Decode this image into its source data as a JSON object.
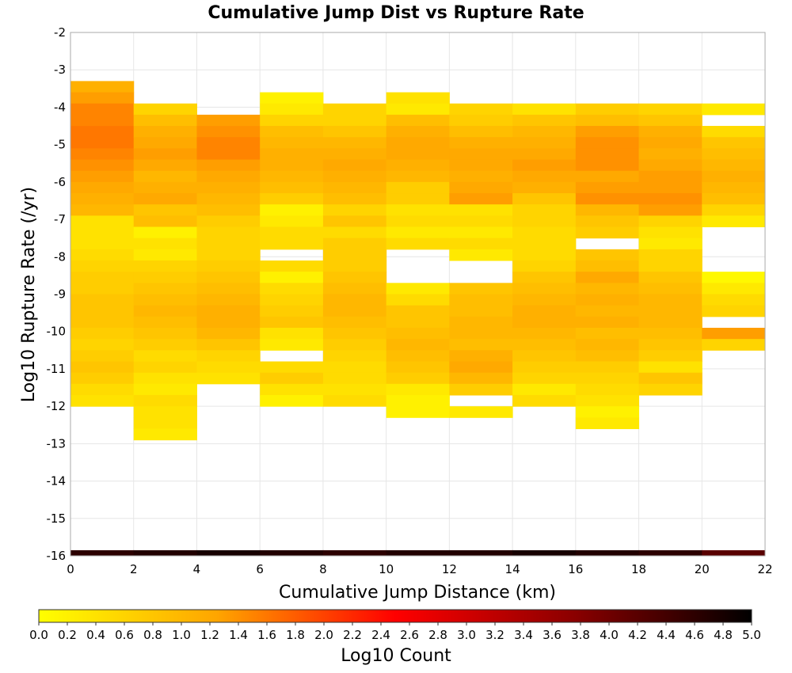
{
  "chart_data": {
    "type": "heatmap",
    "title": "Cumulative Jump Dist vs Rupture Rate",
    "xlabel": "Cumulative Jump Distance (km)",
    "ylabel": "Log10 Rupture Rate (/yr)",
    "xlim": [
      0,
      22
    ],
    "ylim": [
      -16,
      -2
    ],
    "x_ticks": [
      "0",
      "2",
      "4",
      "6",
      "8",
      "10",
      "12",
      "14",
      "16",
      "18",
      "20",
      "22"
    ],
    "y_ticks": [
      "-2",
      "-3",
      "-4",
      "-5",
      "-6",
      "-7",
      "-8",
      "-9",
      "-10",
      "-11",
      "-12",
      "-13",
      "-14",
      "-15",
      "-16"
    ],
    "x_bin_width": 2,
    "y_bin_width": 0.3,
    "grid": true,
    "colorbar": {
      "label": "Log10 Count",
      "range": [
        0,
        5
      ],
      "ticks": [
        "0.0",
        "0.2",
        "0.4",
        "0.6",
        "0.8",
        "1.0",
        "1.2",
        "1.4",
        "1.6",
        "1.8",
        "2.0",
        "2.2",
        "2.4",
        "2.6",
        "2.8",
        "3.0",
        "3.2",
        "3.4",
        "3.6",
        "3.8",
        "4.0",
        "4.2",
        "4.4",
        "4.6",
        "4.8",
        "5.0"
      ],
      "colors": [
        "#ffff00",
        "#ffa500",
        "#ff0000",
        "#8b0000",
        "#000000"
      ]
    },
    "columns": [
      {
        "x": 1,
        "top": -3.3,
        "values": [
          1.1,
          1.3,
          1.5,
          1.5,
          1.6,
          1.6,
          1.5,
          1.4,
          1.3,
          1.2,
          1.1,
          1.0,
          0.4,
          0.4,
          0.4,
          0.5,
          0.6,
          0.7,
          0.7,
          0.8,
          0.8,
          0.8,
          0.7,
          0.6,
          0.7,
          0.8,
          0.7,
          0.5,
          0.4
        ]
      },
      {
        "x": 3,
        "top": -3.9,
        "values": [
          0.6,
          0.9,
          1.1,
          1.2,
          1.3,
          1.2,
          1.0,
          1.1,
          1.2,
          0.8,
          0.9,
          0.2,
          0.4,
          0.3,
          0.6,
          0.7,
          0.8,
          0.9,
          1.0,
          0.9,
          0.8,
          0.7,
          0.5,
          0.6,
          0.4,
          0.3,
          0.5,
          0.4,
          0.4,
          0.3
        ]
      },
      {
        "x": 5,
        "top": -4.2,
        "values": [
          1.3,
          1.4,
          1.5,
          1.5,
          1.3,
          1.2,
          1.1,
          1.0,
          0.9,
          0.7,
          0.6,
          0.6,
          0.6,
          0.7,
          0.8,
          0.9,
          1.0,
          1.1,
          1.1,
          1.0,
          0.8,
          0.6,
          0.5,
          0.4
        ]
      },
      {
        "x": 7,
        "top": -3.6,
        "values": [
          0.2,
          0.3,
          0.6,
          0.9,
          1.0,
          1.1,
          1.1,
          1.0,
          0.9,
          0.7,
          0.2,
          0.3,
          0.5,
          0.5,
          null,
          0.5,
          0.2,
          0.5,
          0.6,
          0.7,
          0.8,
          0.4,
          0.3,
          null,
          0.5,
          0.7,
          0.4,
          0.2
        ]
      },
      {
        "x": 9,
        "top": -3.9,
        "values": [
          0.6,
          0.6,
          0.8,
          1.0,
          1.1,
          1.2,
          1.1,
          1.0,
          0.9,
          0.6,
          0.8,
          0.5,
          0.7,
          0.7,
          0.7,
          0.8,
          0.9,
          1.0,
          1.0,
          0.9,
          0.8,
          0.7,
          0.6,
          0.5,
          0.5,
          0.4,
          0.5
        ]
      },
      {
        "x": 11,
        "top": -3.6,
        "values": [
          0.4,
          0.3,
          0.9,
          1.1,
          1.2,
          1.2,
          1.1,
          1.0,
          0.7,
          0.7,
          0.4,
          0.5,
          0.3,
          0.5,
          null,
          null,
          null,
          0.3,
          0.5,
          0.8,
          0.8,
          0.9,
          1.0,
          0.9,
          0.8,
          0.7,
          0.3,
          0.2,
          0.2
        ]
      },
      {
        "x": 13,
        "top": -3.9,
        "values": [
          0.6,
          0.7,
          0.9,
          1.1,
          1.2,
          1.2,
          1.1,
          1.2,
          1.3,
          0.4,
          0.5,
          0.3,
          0.5,
          0.3,
          null,
          null,
          0.8,
          0.9,
          0.9,
          1.0,
          1.0,
          0.9,
          1.1,
          1.2,
          1.0,
          0.7,
          null,
          0.3
        ]
      },
      {
        "x": 15,
        "top": -3.9,
        "values": [
          0.4,
          0.8,
          1.0,
          1.1,
          1.2,
          1.3,
          1.2,
          1.1,
          0.8,
          0.6,
          0.6,
          0.5,
          0.5,
          0.5,
          0.6,
          0.8,
          0.9,
          1.0,
          1.1,
          1.1,
          1.0,
          0.9,
          0.8,
          0.7,
          0.6,
          0.3,
          0.5
        ]
      },
      {
        "x": 17,
        "top": -3.9,
        "values": [
          0.7,
          0.9,
          1.3,
          1.4,
          1.4,
          1.4,
          1.2,
          1.3,
          1.4,
          1.0,
          0.8,
          0.7,
          null,
          0.8,
          0.9,
          1.2,
          1.0,
          1.1,
          1.0,
          1.1,
          0.9,
          1.0,
          0.9,
          0.7,
          0.6,
          0.5,
          0.4,
          0.2,
          0.3
        ]
      },
      {
        "x": 19,
        "top": -3.9,
        "values": [
          0.6,
          0.8,
          1.1,
          1.2,
          1.1,
          1.2,
          1.3,
          1.3,
          1.4,
          1.3,
          0.6,
          0.4,
          0.3,
          0.6,
          0.6,
          0.8,
          0.9,
          1.0,
          1.0,
          1.0,
          0.9,
          0.8,
          0.7,
          0.4,
          0.8,
          0.6
        ]
      },
      {
        "x": 21,
        "top": -3.9,
        "values": [
          0.3,
          null,
          0.5,
          0.8,
          0.9,
          1.0,
          1.1,
          1.0,
          0.9,
          0.6,
          0.3,
          null,
          null,
          null,
          null,
          0.1,
          0.3,
          0.5,
          0.6,
          null,
          1.3,
          0.6
        ]
      }
    ],
    "baseline_row": {
      "y": -16,
      "values": [
        4.6,
        4.7,
        4.8,
        4.7,
        4.6,
        4.7,
        4.7,
        4.8,
        4.7,
        4.6,
        4.2
      ]
    }
  }
}
